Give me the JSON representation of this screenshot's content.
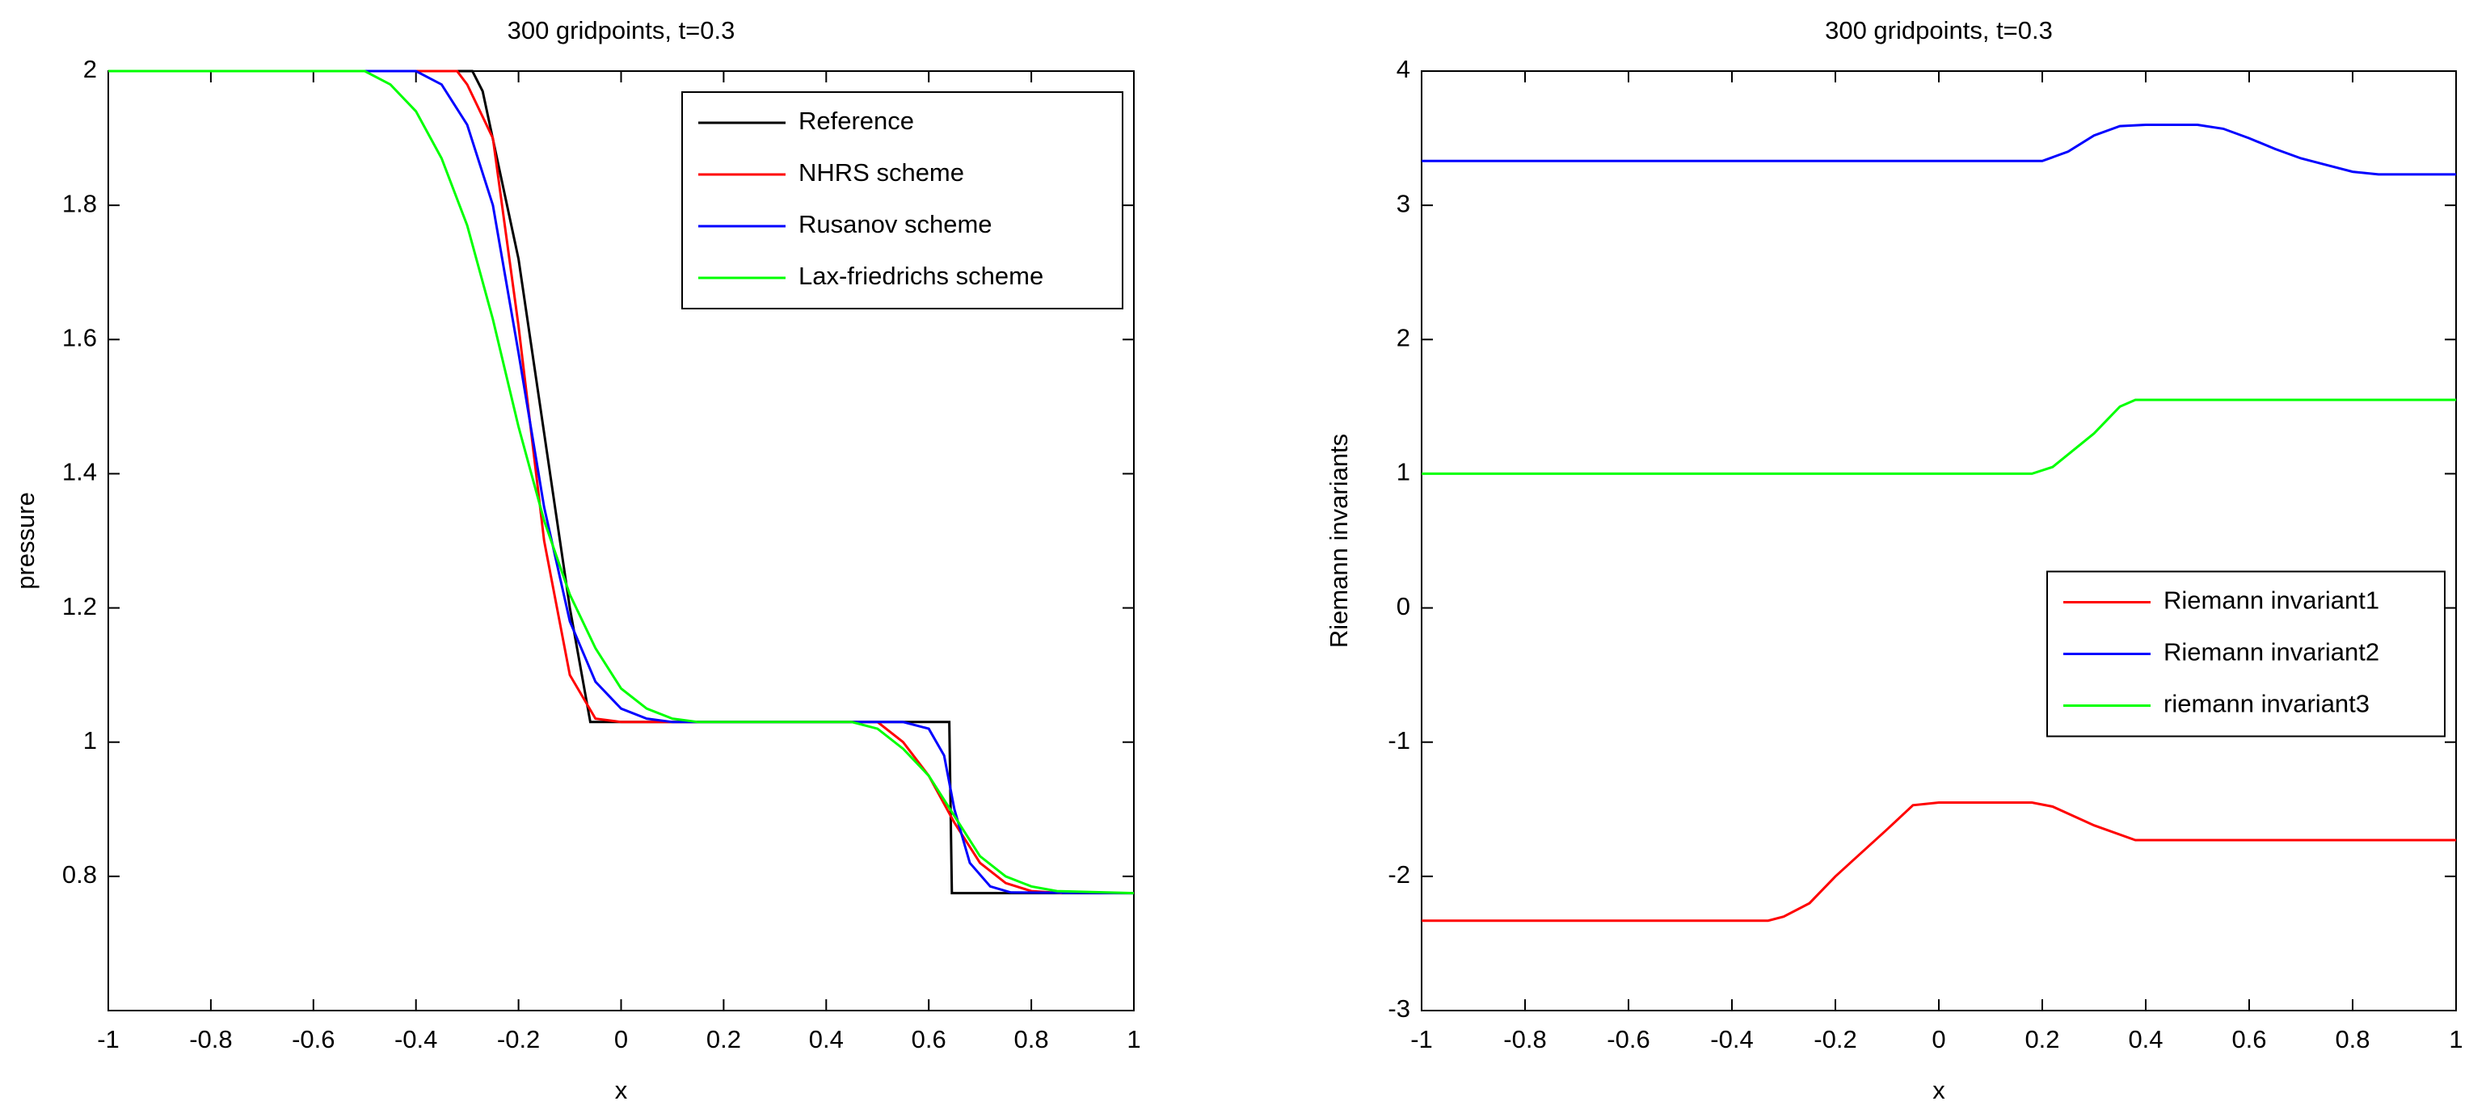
{
  "chart_data": [
    {
      "type": "line",
      "title": "300 gridpoints, t=0.3",
      "xlabel": "x",
      "ylabel": "pressure",
      "xlim": [
        -1,
        1
      ],
      "ylim": [
        0.6,
        2
      ],
      "xticks": [
        -1,
        -0.8,
        -0.6,
        -0.4,
        -0.2,
        0,
        0.2,
        0.4,
        0.6,
        0.8,
        1
      ],
      "yticks": [
        0.8,
        1,
        1.2,
        1.4,
        1.6,
        1.8,
        2
      ],
      "legend": "upper right",
      "series": [
        {
          "name": "Reference",
          "color": "#000000",
          "x": [
            -1,
            -0.29,
            -0.27,
            -0.2,
            -0.1,
            -0.06,
            0.64,
            0.645,
            1
          ],
          "values": [
            2,
            2,
            1.97,
            1.72,
            1.2,
            1.03,
            1.03,
            0.775,
            0.775
          ]
        },
        {
          "name": "NHRS scheme",
          "color": "#ff0000",
          "x": [
            -1,
            -0.32,
            -0.3,
            -0.25,
            -0.2,
            -0.15,
            -0.1,
            -0.05,
            0,
            0.5,
            0.55,
            0.6,
            0.65,
            0.7,
            0.75,
            0.8,
            0.86
          ],
          "values": [
            2,
            2,
            1.98,
            1.9,
            1.62,
            1.3,
            1.1,
            1.035,
            1.03,
            1.03,
            1.0,
            0.95,
            0.88,
            0.82,
            0.79,
            0.778,
            0.775
          ]
        },
        {
          "name": "Rusanov scheme",
          "color": "#0000ff",
          "x": [
            -1,
            -0.4,
            -0.35,
            -0.3,
            -0.25,
            -0.2,
            -0.15,
            -0.1,
            -0.05,
            0,
            0.05,
            0.1,
            0.15,
            0.55,
            0.6,
            0.63,
            0.65,
            0.68,
            0.72,
            0.76,
            1
          ],
          "values": [
            2,
            2,
            1.98,
            1.92,
            1.8,
            1.58,
            1.35,
            1.18,
            1.09,
            1.05,
            1.035,
            1.03,
            1.03,
            1.03,
            1.02,
            0.98,
            0.9,
            0.82,
            0.785,
            0.776,
            0.775
          ]
        },
        {
          "name": "Lax-friedrichs scheme",
          "color": "#00ff00",
          "x": [
            -1,
            -0.5,
            -0.45,
            -0.4,
            -0.35,
            -0.3,
            -0.25,
            -0.2,
            -0.15,
            -0.1,
            -0.05,
            0,
            0.05,
            0.1,
            0.15,
            0.2,
            0.45,
            0.5,
            0.55,
            0.6,
            0.65,
            0.7,
            0.75,
            0.8,
            0.85,
            1
          ],
          "values": [
            2,
            2,
            1.98,
            1.94,
            1.87,
            1.77,
            1.63,
            1.47,
            1.33,
            1.22,
            1.14,
            1.08,
            1.05,
            1.035,
            1.03,
            1.03,
            1.03,
            1.02,
            0.99,
            0.95,
            0.89,
            0.83,
            0.8,
            0.785,
            0.778,
            0.775
          ]
        }
      ]
    },
    {
      "type": "line",
      "title": "300 gridpoints, t=0.3",
      "xlabel": "x",
      "ylabel": "Riemann invariants",
      "xlim": [
        -1,
        1
      ],
      "ylim": [
        -3,
        4
      ],
      "xticks": [
        -1,
        -0.8,
        -0.6,
        -0.4,
        -0.2,
        0,
        0.2,
        0.4,
        0.6,
        0.8,
        1
      ],
      "yticks": [
        -3,
        -2,
        -1,
        0,
        1,
        2,
        3,
        4
      ],
      "legend": "center right",
      "series": [
        {
          "name": "Riemann invariant1",
          "color": "#ff0000",
          "x": [
            -1,
            -0.33,
            -0.3,
            -0.25,
            -0.2,
            -0.1,
            -0.05,
            0,
            0.18,
            0.22,
            0.3,
            0.38,
            1
          ],
          "values": [
            -2.33,
            -2.33,
            -2.3,
            -2.2,
            -2.0,
            -1.65,
            -1.47,
            -1.45,
            -1.45,
            -1.48,
            -1.62,
            -1.73,
            -1.73
          ]
        },
        {
          "name": "Riemann invariant2",
          "color": "#0000ff",
          "x": [
            -1,
            0.2,
            0.25,
            0.3,
            0.35,
            0.4,
            0.5,
            0.55,
            0.6,
            0.65,
            0.7,
            0.75,
            0.8,
            0.85,
            1
          ],
          "values": [
            3.33,
            3.33,
            3.4,
            3.52,
            3.59,
            3.6,
            3.6,
            3.57,
            3.5,
            3.42,
            3.35,
            3.3,
            3.25,
            3.23,
            3.23
          ]
        },
        {
          "name": "riemann invariant3",
          "color": "#00ff00",
          "x": [
            -1,
            0.18,
            0.22,
            0.3,
            0.35,
            0.38,
            1
          ],
          "values": [
            1,
            1,
            1.05,
            1.3,
            1.5,
            1.55,
            1.55
          ]
        }
      ]
    }
  ]
}
